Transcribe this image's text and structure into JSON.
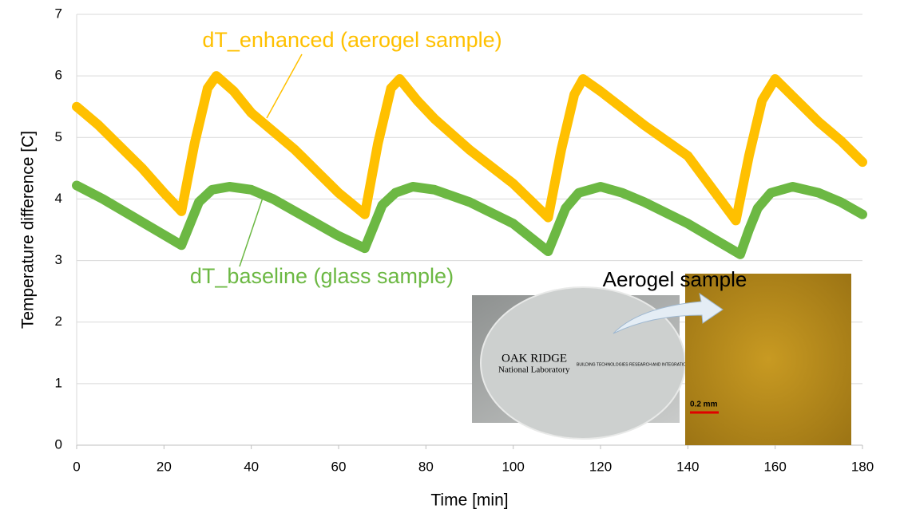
{
  "chart_data": {
    "type": "line",
    "x_label": "Time [min]",
    "y_label": "Temperature difference [C]",
    "xlim": [
      0,
      180
    ],
    "xticks": [
      0,
      20,
      40,
      60,
      80,
      100,
      120,
      140,
      160,
      180
    ],
    "ylim": [
      0,
      7
    ],
    "yticks": [
      0,
      1,
      2,
      3,
      4,
      5,
      6,
      7
    ],
    "grid": true,
    "series": [
      {
        "name": "dT_enhanced (aerogel sample)",
        "color": "#ffc000",
        "x": [
          0,
          5,
          10,
          15,
          20,
          24,
          27,
          30,
          32,
          36,
          40,
          45,
          50,
          55,
          60,
          66,
          69,
          72,
          74,
          78,
          82,
          90,
          100,
          108,
          111,
          114,
          116,
          120,
          130,
          140,
          151,
          154,
          157,
          160,
          165,
          170,
          175,
          180
        ],
        "values": [
          5.5,
          5.2,
          4.85,
          4.5,
          4.1,
          3.8,
          4.9,
          5.8,
          6.0,
          5.75,
          5.4,
          5.1,
          4.8,
          4.45,
          4.1,
          3.75,
          4.9,
          5.8,
          5.95,
          5.6,
          5.3,
          4.8,
          4.25,
          3.7,
          4.8,
          5.7,
          5.95,
          5.75,
          5.2,
          4.7,
          3.65,
          4.7,
          5.6,
          5.95,
          5.6,
          5.25,
          4.95,
          4.6
        ]
      },
      {
        "name": "dT_baseline (glass sample)",
        "color": "#6cb843",
        "x": [
          0,
          6,
          12,
          18,
          24,
          26,
          28,
          31,
          35,
          40,
          45,
          50,
          55,
          60,
          66,
          68,
          70,
          73,
          77,
          82,
          90,
          100,
          108,
          110,
          112,
          115,
          120,
          125,
          130,
          140,
          152,
          154,
          156,
          159,
          164,
          170,
          175,
          180
        ],
        "values": [
          4.22,
          4.0,
          3.75,
          3.5,
          3.25,
          3.6,
          3.95,
          4.15,
          4.2,
          4.15,
          4.0,
          3.8,
          3.6,
          3.4,
          3.2,
          3.55,
          3.9,
          4.1,
          4.2,
          4.15,
          3.95,
          3.6,
          3.15,
          3.5,
          3.85,
          4.1,
          4.2,
          4.1,
          3.95,
          3.6,
          3.1,
          3.5,
          3.85,
          4.1,
          4.2,
          4.1,
          3.95,
          3.75
        ]
      }
    ],
    "inset": {
      "title": "Aerogel sample",
      "logo": "OAK RIDGE",
      "logo_sub": "National Laboratory",
      "center": "BUILDING TECHNOLOGIES RESEARCH AND INTEGRATION CENTER",
      "scale": "0.2 mm"
    }
  }
}
